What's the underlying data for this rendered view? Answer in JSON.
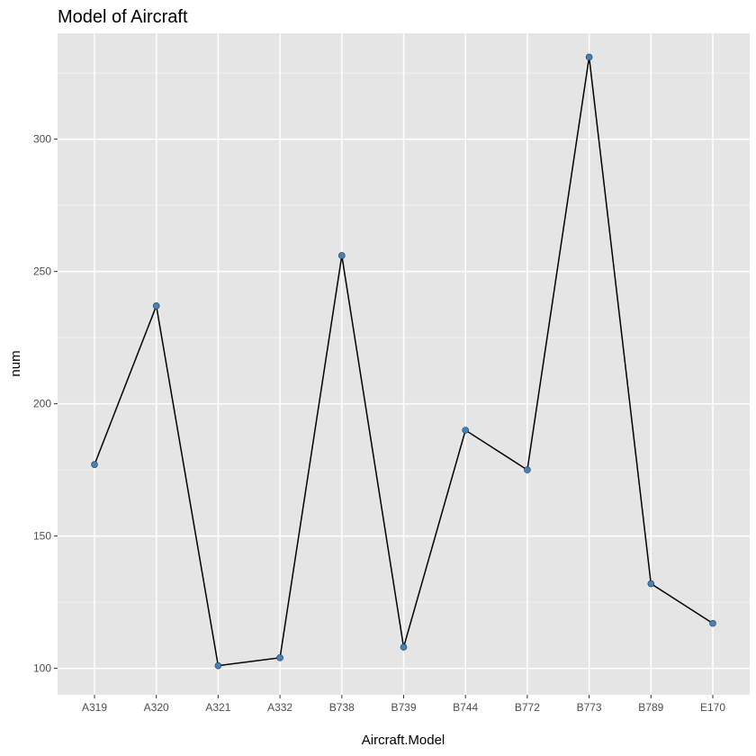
{
  "chart_data": {
    "type": "line",
    "title": "Model of Aircraft",
    "xlabel": "Aircraft.Model",
    "ylabel": "num",
    "categories": [
      "A319",
      "A320",
      "A321",
      "A332",
      "B738",
      "B739",
      "B744",
      "B772",
      "B773",
      "B789",
      "E170"
    ],
    "values": [
      177,
      237,
      101,
      104,
      256,
      108,
      190,
      175,
      331,
      132,
      117
    ],
    "yticks": [
      100,
      150,
      200,
      250,
      300
    ],
    "ylim": [
      90,
      340
    ],
    "grid": true,
    "legend": "none",
    "colors": {
      "panel_bg": "#e5e5e5",
      "grid_major": "#ffffff",
      "line": "#000000",
      "point": "#4682b4",
      "tick_text": "#4d4d4d"
    }
  }
}
